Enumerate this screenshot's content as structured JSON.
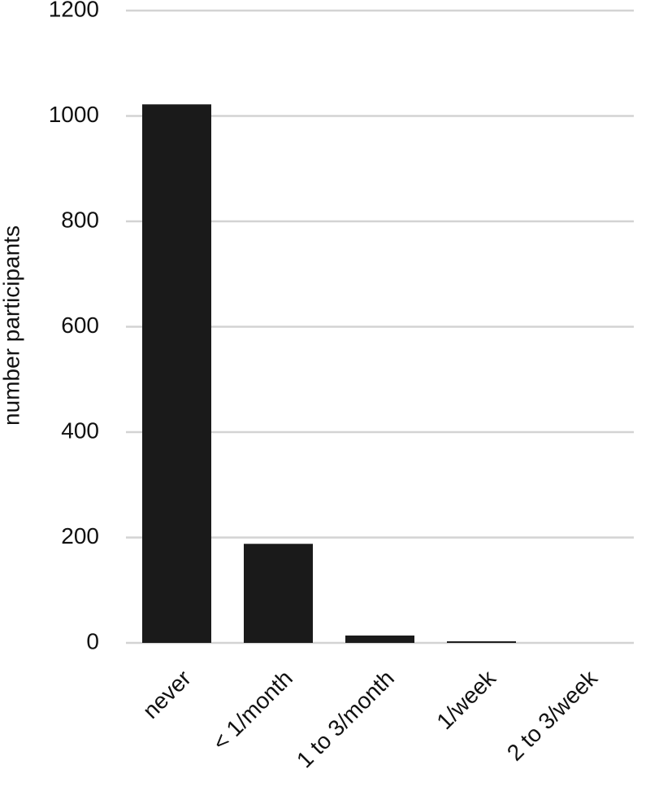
{
  "chart_data": {
    "type": "bar",
    "y_label": "number participants",
    "categories": [
      "never",
      "< 1/month",
      "1 to 3/month",
      "1/week",
      "2 to 3/week"
    ],
    "values": [
      1022,
      188,
      14,
      3,
      0
    ],
    "color": "#1a1a1a",
    "ylim": [
      0,
      1200
    ],
    "yticks": [
      0,
      200,
      400,
      600,
      800,
      1000,
      1200
    ],
    "grid": true
  }
}
